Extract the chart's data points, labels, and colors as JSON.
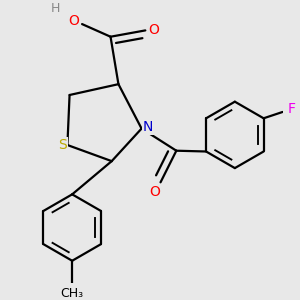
{
  "bg_color": "#e8e8e8",
  "atom_colors": {
    "C": "#000000",
    "N": "#0000cc",
    "O": "#ff0000",
    "S": "#bbaa00",
    "F": "#ee00ee",
    "H": "#888888"
  },
  "bond_color": "#000000",
  "bond_width": 1.6,
  "font_size_atom": 10,
  "font_size_H": 9
}
